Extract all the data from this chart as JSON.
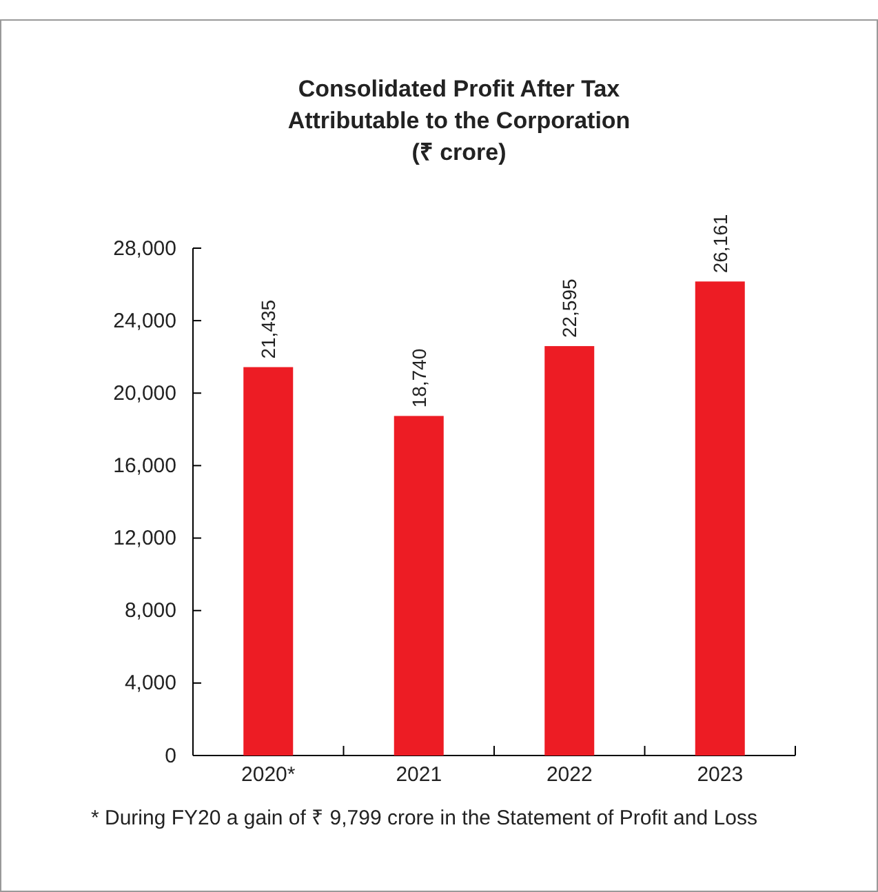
{
  "chart_data": {
    "type": "bar",
    "title": "Consolidated Profit After Tax\nAttributable to the Corporation\n(₹ crore)",
    "categories": [
      "2020*",
      "2021",
      "2022",
      "2023"
    ],
    "values": [
      21435,
      18740,
      22595,
      26161
    ],
    "color": "#ed1c24",
    "ylim": [
      0,
      28000
    ],
    "yticks": [
      {
        "value": 0,
        "label": "0"
      },
      {
        "value": 4000,
        "label": "4,000"
      },
      {
        "value": 8000,
        "label": "8,000"
      },
      {
        "value": 12000,
        "label": "12,000"
      },
      {
        "value": 16000,
        "label": "16,000"
      },
      {
        "value": 20000,
        "label": "20,000"
      },
      {
        "value": 24000,
        "label": "24,000"
      },
      {
        "value": 28000,
        "label": "28,000"
      }
    ],
    "value_labels": [
      "21,435",
      "18,740",
      "22,595",
      "26,161"
    ],
    "annotations": [
      "* During FY20 a gain of ₹ 9,799 crore in the Statement of Profit and Loss"
    ]
  }
}
